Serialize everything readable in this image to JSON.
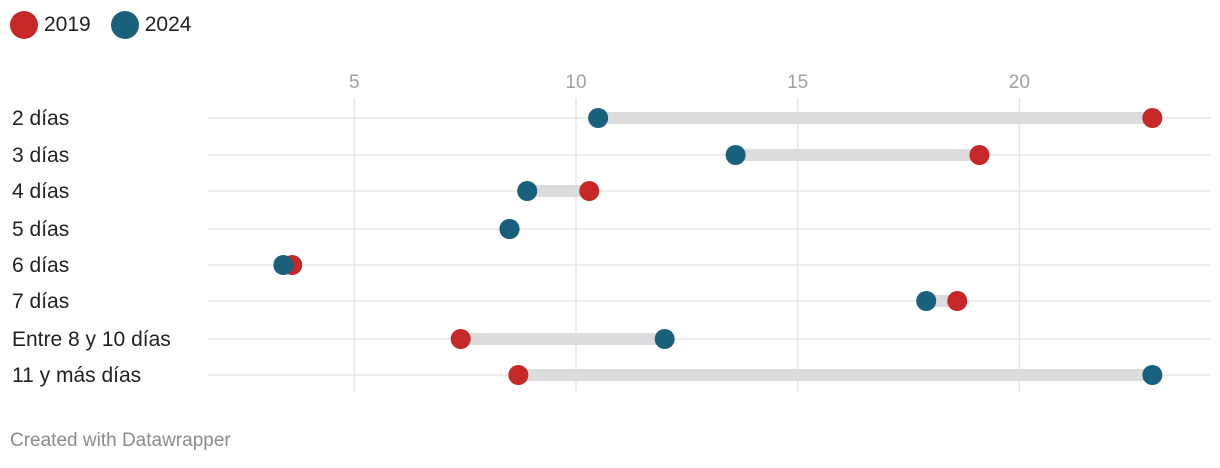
{
  "colors": {
    "y2019": "#c62828",
    "y2024": "#19607d",
    "connector": "#dcdcdc",
    "grid": "#e6e6e6"
  },
  "legend": [
    {
      "label": "2019",
      "color": "#c62828"
    },
    {
      "label": "2024",
      "color": "#19607d"
    }
  ],
  "credit": "Created with Datawrapper",
  "chart_data": {
    "type": "dot-range",
    "title": "",
    "xlabel": "",
    "ylabel": "",
    "xlim": [
      1.7,
      24.3
    ],
    "x_ticks": [
      5,
      10,
      15,
      20
    ],
    "grid": true,
    "legend_position": "top-left",
    "categories": [
      "2 días",
      "3 días",
      "4 días",
      "5 días",
      "6 días",
      "7 días",
      "Entre 8 y 10 días",
      "11 y más días"
    ],
    "series": [
      {
        "name": "2019",
        "values": [
          23.0,
          19.1,
          10.3,
          8.5,
          3.6,
          18.6,
          7.4,
          8.7
        ]
      },
      {
        "name": "2024",
        "values": [
          10.5,
          13.6,
          8.9,
          8.5,
          3.4,
          17.9,
          12.0,
          23.0
        ]
      }
    ]
  }
}
